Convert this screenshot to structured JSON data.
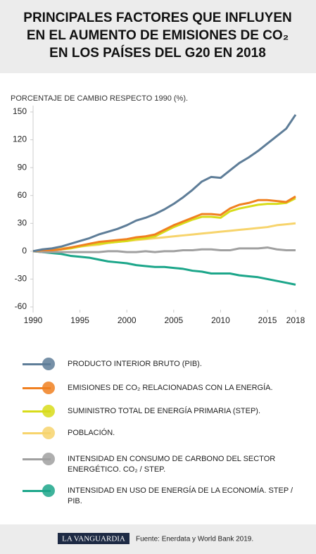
{
  "chart_data": {
    "type": "line",
    "title": [
      "PRINCIPALES FACTORES QUE INFLUYEN",
      "EN EL AUMENTO DE EMISIONES DE CO₂",
      "EN LOS PAÍSES DEL G20 EN 2018"
    ],
    "ylabel": "PORCENTAJE DE CAMBIO RESPECTO 1990 (%).",
    "x": [
      1990,
      1991,
      1992,
      1993,
      1994,
      1995,
      1996,
      1997,
      1998,
      1999,
      2000,
      2001,
      2002,
      2003,
      2004,
      2005,
      2006,
      2007,
      2008,
      2009,
      2010,
      2011,
      2012,
      2013,
      2014,
      2015,
      2016,
      2017,
      2018
    ],
    "xlim": [
      1990,
      2018
    ],
    "xticks": [
      1990,
      1995,
      2000,
      2005,
      2010,
      2015,
      2018
    ],
    "ylim": [
      -60,
      150
    ],
    "yticks": [
      150,
      120,
      90,
      60,
      30,
      0,
      -30,
      -60
    ],
    "grid": false,
    "series": [
      {
        "name": "PRODUCTO INTERIOR BRUTO (PIB).",
        "color": "#5e7d98",
        "values": [
          0,
          2,
          3,
          5,
          8,
          11,
          14,
          18,
          21,
          24,
          28,
          33,
          36,
          40,
          45,
          51,
          58,
          66,
          75,
          80,
          79,
          87,
          95,
          101,
          108,
          116,
          124,
          132,
          147
        ]
      },
      {
        "name": "EMISIONES DE CO₂ RELACIONADAS CON LA ENERGÍA.",
        "color": "#f08020",
        "values": [
          0,
          1,
          1,
          2,
          4,
          6,
          8,
          10,
          11,
          12,
          13,
          15,
          16,
          18,
          23,
          28,
          32,
          36,
          40,
          40,
          39,
          46,
          50,
          52,
          55,
          55,
          54,
          53,
          59
        ]
      },
      {
        "name": "SUMINISTRO TOTAL DE ENERGÍA PRIMARIA (STEP).",
        "color": "#d8dc1a",
        "values": [
          0,
          1,
          1,
          2,
          3,
          5,
          7,
          8,
          9,
          10,
          11,
          13,
          14,
          16,
          21,
          26,
          30,
          34,
          37,
          37,
          36,
          43,
          46,
          48,
          50,
          51,
          51,
          52,
          57
        ]
      },
      {
        "name": "POBLACIÓN.",
        "color": "#f7d46c",
        "values": [
          0,
          1,
          2,
          3,
          4,
          5,
          6,
          7,
          9,
          10,
          11,
          12,
          13,
          14,
          15,
          16,
          17,
          18,
          19,
          20,
          21,
          22,
          23,
          24,
          25,
          26,
          28,
          29,
          30
        ]
      },
      {
        "name": "INTENSIDAD EN CONSUMO DE CARBONO DEL SECTOR ENERGÉTICO. CO₂ / STEP.",
        "color": "#a0a0a0",
        "values": [
          0,
          -1,
          -1,
          -1,
          -1,
          -1,
          -1,
          -1,
          0,
          0,
          -1,
          -1,
          0,
          -1,
          0,
          0,
          1,
          1,
          2,
          2,
          1,
          1,
          3,
          3,
          3,
          4,
          2,
          1,
          1
        ]
      },
      {
        "name": "INTENSIDAD EN USO DE ENERGÍA DE LA ECONOMÍA. STEP / PIB.",
        "color": "#1ca68a",
        "values": [
          0,
          -1,
          -2,
          -3,
          -5,
          -6,
          -7,
          -9,
          -11,
          -12,
          -13,
          -15,
          -16,
          -17,
          -17,
          -18,
          -19,
          -21,
          -22,
          -24,
          -24,
          -24,
          -26,
          -27,
          -28,
          -30,
          -32,
          -34,
          -36
        ]
      }
    ],
    "brand": "LA VANGUARDIA",
    "source": "Fuente: Enerdata y World Bank 2019."
  }
}
